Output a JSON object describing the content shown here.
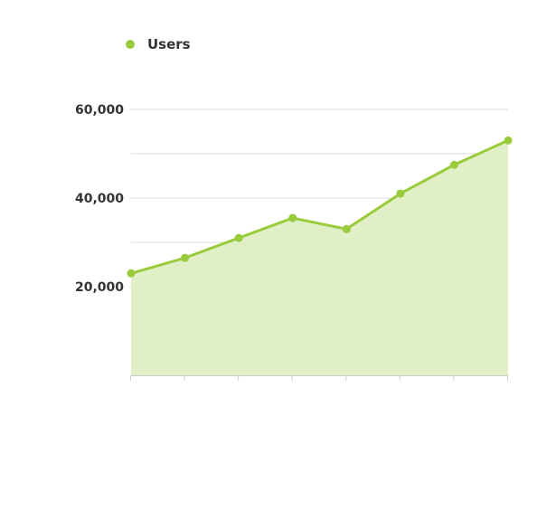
{
  "chart_data": {
    "type": "area",
    "title": "",
    "xlabel": "",
    "ylabel": "",
    "x": [
      1,
      2,
      3,
      4,
      5,
      6,
      7,
      8
    ],
    "series": [
      {
        "name": "Users",
        "values": [
          23000,
          26500,
          31000,
          35500,
          33000,
          41000,
          47500,
          53000
        ],
        "color": "#9acb3c",
        "fill_color": "#e0efc5"
      }
    ],
    "ylim": [
      0,
      60000
    ],
    "yticks": [
      20000,
      40000,
      60000
    ],
    "ytick_labels": [
      "20,000",
      "40,000",
      "60,000"
    ],
    "grid": true,
    "legend_position": "top-left"
  }
}
